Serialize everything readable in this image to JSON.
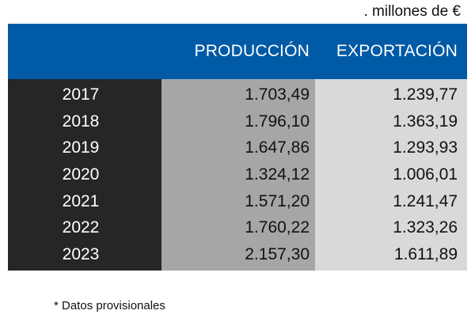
{
  "unit_label": ". millones de €",
  "footnote": "* Datos provisionales",
  "chart_data": {
    "type": "table",
    "columns": [
      "",
      "PRODUCCIÓN",
      "EXPORTACIÓN"
    ],
    "rows": [
      {
        "year": "2017",
        "produccion": "1.703,49",
        "exportacion": "1.239,77"
      },
      {
        "year": "2018",
        "produccion": "1.796,10",
        "exportacion": "1.363,19"
      },
      {
        "year": "2019",
        "produccion": "1.647,86",
        "exportacion": "1.293,93"
      },
      {
        "year": "2020",
        "produccion": "1.324,12",
        "exportacion": "1.006,01"
      },
      {
        "year": "2021",
        "produccion": "1.571,20",
        "exportacion": "1.241,47"
      },
      {
        "year": "2022",
        "produccion": "1.760,22",
        "exportacion": "1.323,26"
      },
      {
        "year": "2023",
        "produccion": "2.157,30",
        "exportacion": "1.611,89"
      }
    ]
  },
  "colors": {
    "header_bg": "#005aa6",
    "year_col_bg": "#262626",
    "produccion_col_bg": "#a6a6a6",
    "exportacion_col_bg": "#d9d9d9"
  }
}
